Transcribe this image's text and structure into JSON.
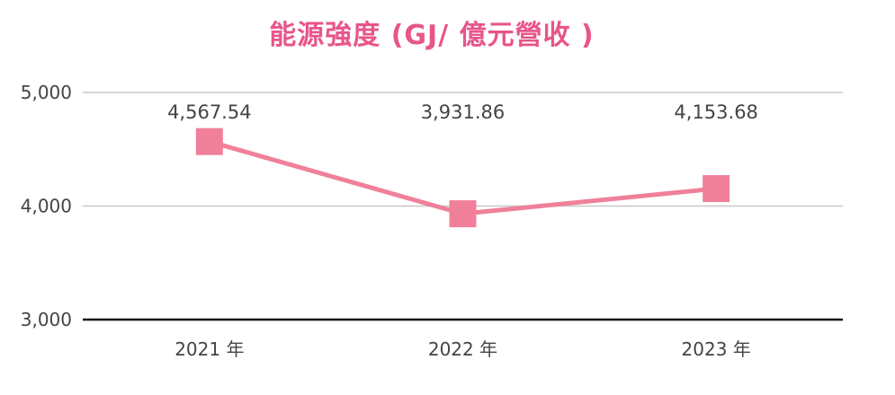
{
  "chart_data": {
    "type": "line",
    "title": "能源強度 (GJ/ 億元營收 )",
    "categories": [
      "2021 年",
      "2022 年",
      "2023 年"
    ],
    "series": [
      {
        "values": [
          4567.54,
          3931.86,
          4153.68
        ]
      }
    ],
    "data_labels": [
      "4,567.54",
      "3,931.86",
      "4,153.68"
    ],
    "y_ticks": [
      3000,
      4000,
      5000
    ],
    "y_tick_labels": [
      "3,000",
      "4,000",
      "5,000"
    ],
    "ylim": [
      3000,
      5000
    ],
    "xlabel": "",
    "ylabel": "",
    "grid": true,
    "legend": "none",
    "colors": {
      "title": "#e8558a",
      "line": "#f08099",
      "gridline": "#c8c8c8",
      "baseline": "#111111",
      "text": "#444444"
    }
  }
}
